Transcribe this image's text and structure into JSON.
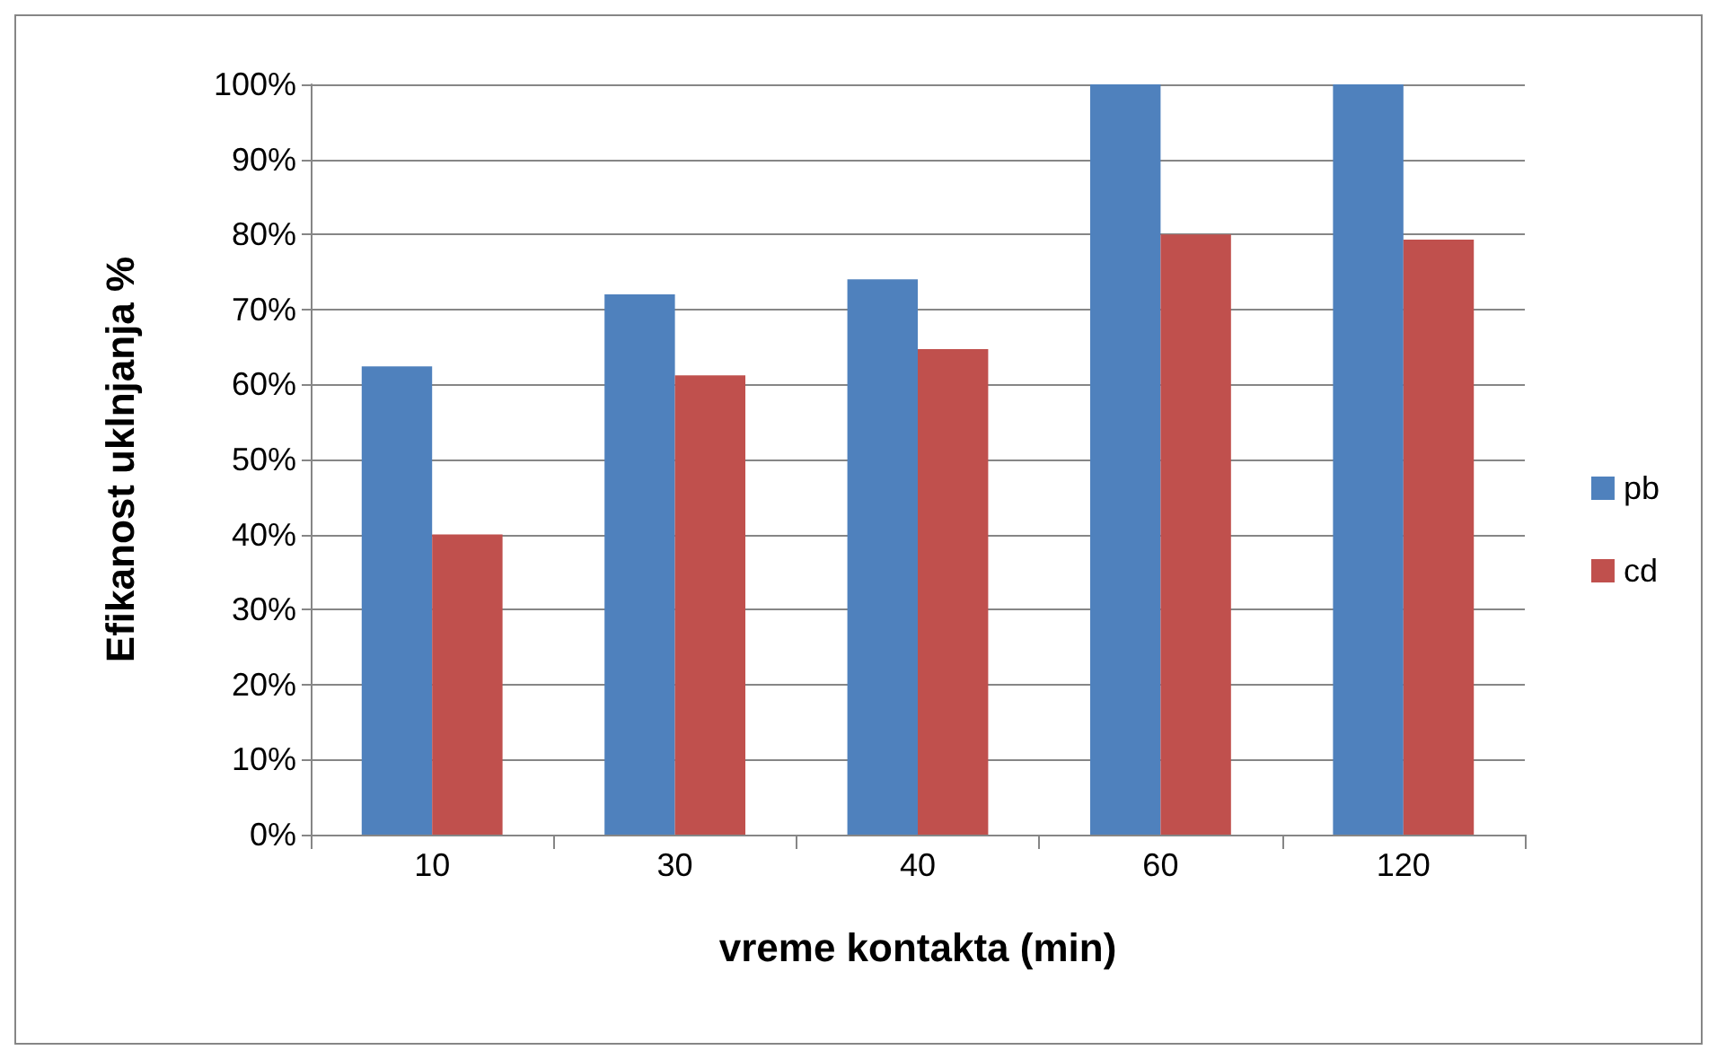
{
  "chart_data": {
    "type": "bar",
    "xlabel": "vreme kontakta (min)",
    "ylabel": "Efikanost uklnjanja %",
    "categories": [
      "10",
      "30",
      "40",
      "60",
      "120"
    ],
    "series": [
      {
        "name": "pb",
        "color": "#4f81bd",
        "values": [
          62.4,
          72,
          74,
          100,
          100
        ]
      },
      {
        "name": "cd",
        "color": "#c0504d",
        "values": [
          40,
          61.2,
          64.7,
          80,
          79.3
        ]
      }
    ],
    "ylim": [
      0,
      100
    ],
    "yticks": [
      {
        "value": 0,
        "label": "0%"
      },
      {
        "value": 10,
        "label": "10%"
      },
      {
        "value": 20,
        "label": "20%"
      },
      {
        "value": 30,
        "label": "30%"
      },
      {
        "value": 40,
        "label": "40%"
      },
      {
        "value": 50,
        "label": "50%"
      },
      {
        "value": 60,
        "label": "60%"
      },
      {
        "value": 70,
        "label": "70%"
      },
      {
        "value": 80,
        "label": "80%"
      },
      {
        "value": 90,
        "label": "90%"
      },
      {
        "value": 100,
        "label": "100%"
      }
    ],
    "grid": "y",
    "legend": "right"
  }
}
